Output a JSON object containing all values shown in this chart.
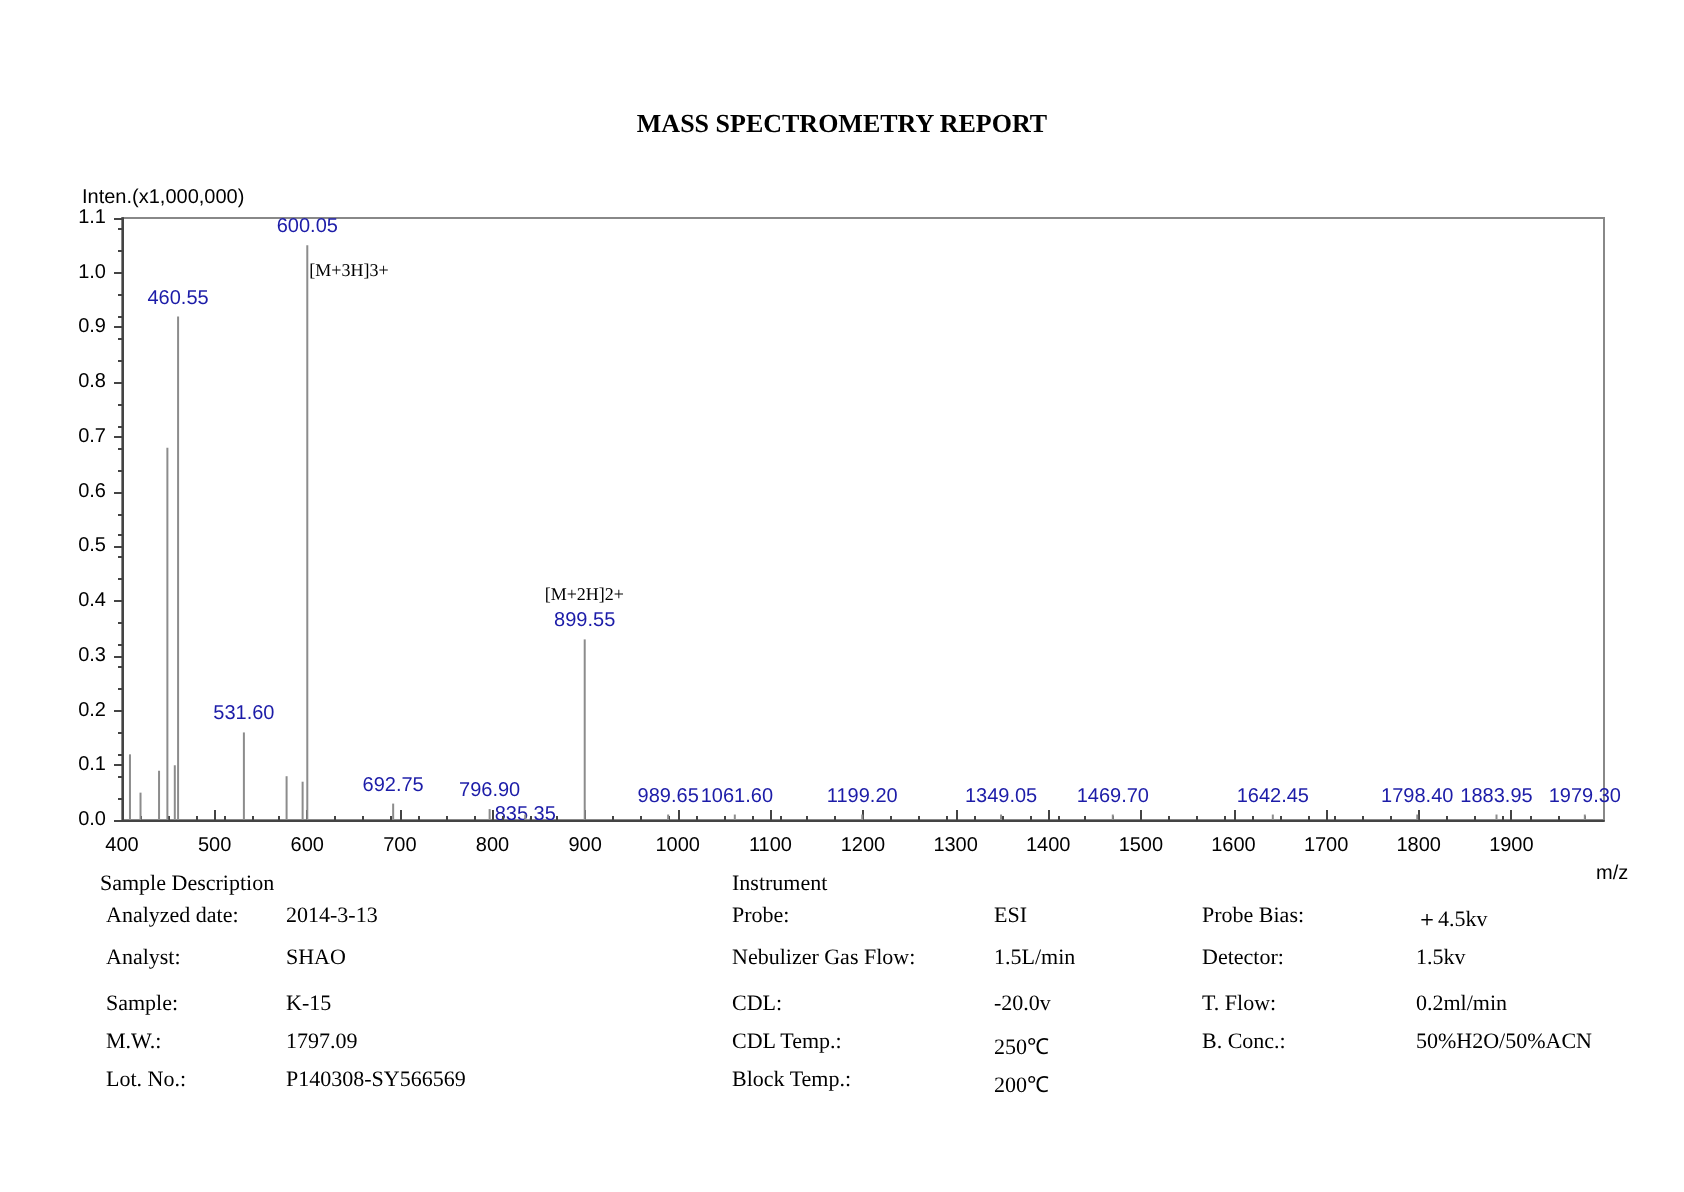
{
  "chart_data": {
    "type": "bar",
    "title": "MASS SPECTROMETRY REPORT",
    "xlabel": "m/z",
    "ylabel": "Inten.(x1,000,000)",
    "x": [
      408.6,
      420,
      440,
      449,
      457,
      460.55,
      531.6,
      577.7,
      595,
      600.05,
      692.75,
      796.9,
      835.35,
      899.55,
      989.65,
      1061.6,
      1199.2,
      1349.05,
      1469.7,
      1642.45,
      1798.4,
      1883.95,
      1979.3
    ],
    "values": [
      0.12,
      0.05,
      0.09,
      0.68,
      0.1,
      0.92,
      0.16,
      0.08,
      0.07,
      1.05,
      0.03,
      0.02,
      0.01,
      0.33,
      0.01,
      0.01,
      0.01,
      0.01,
      0.01,
      0.01,
      0.01,
      0.01,
      0.01
    ],
    "color": "#8c8c8c",
    "xlim": [
      400,
      2000
    ],
    "xticks": [
      400,
      500,
      600,
      700,
      800,
      900,
      1000,
      1100,
      1200,
      1300,
      1400,
      1500,
      1600,
      1700,
      1800,
      1900
    ],
    "ylim": [
      0,
      1.1
    ],
    "yticks": [
      {
        "value": 0,
        "label": "0.0"
      },
      0.1,
      0.2,
      0.3,
      0.4,
      0.5,
      0.6,
      0.7,
      0.8,
      0.9,
      {
        "value": 1,
        "label": "1.0"
      },
      1.1
    ],
    "grid": false,
    "annotations": [
      "Sample Description",
      "Analyzed date:",
      "2014-3-13",
      "Analyst:",
      "SHAO",
      "Sample:",
      "K-15",
      "M.W.:",
      "1797.09",
      "Lot. No.:",
      "P140308-SY566569",
      "Instrument",
      "Probe:",
      "ESI",
      "Probe Bias:",
      "＋4.5kv",
      "Nebulizer Gas Flow:",
      "1.5L/min",
      "Detector:",
      "1.5kv",
      "CDL:",
      "-20.0v",
      "T. Flow:",
      "0.2ml/min",
      "CDL Temp.:",
      "250℃",
      "B. Conc.:",
      "50%H2O/50%ACN",
      "Block Temp.:",
      "200℃",
      {
        "text": "[M+3H]3+",
        "x": 600.05,
        "y": 1.05
      },
      {
        "text": "[M+2H]2+",
        "x": 899.55,
        "y": 0.33
      },
      {
        "text": "460.55",
        "x": 460.55,
        "y": 0.92
      },
      {
        "text": "531.60",
        "x": 531.6,
        "y": 0.16
      },
      {
        "text": "600.05",
        "x": 600.05,
        "y": 1.05
      },
      {
        "text": "692.75",
        "x": 692.75,
        "y": 0.03
      },
      {
        "text": "796.90",
        "x": 796.9,
        "y": 0.02
      },
      {
        "text": "835.35",
        "x": 835.35,
        "y": 0.01
      },
      {
        "text": "899.55",
        "x": 899.55,
        "y": 0.33
      },
      {
        "text": "989.65",
        "x": 989.65,
        "y": 0.01
      },
      {
        "text": "1061.60",
        "x": 1061.6,
        "y": 0.01
      },
      {
        "text": "1199.20",
        "x": 1199.2,
        "y": 0.01
      },
      {
        "text": "1349.05",
        "x": 1349.05,
        "y": 0.01
      },
      {
        "text": "1469.70",
        "x": 1469.7,
        "y": 0.01
      },
      {
        "text": "1642.45",
        "x": 1642.45,
        "y": 0.01
      },
      {
        "text": "1798.40",
        "x": 1798.4,
        "y": 0.01
      },
      {
        "text": "1883.95",
        "x": 1883.95,
        "y": 0.01
      },
      {
        "text": "1979.30",
        "x": 1979.3,
        "y": 0.01
      }
    ]
  }
}
